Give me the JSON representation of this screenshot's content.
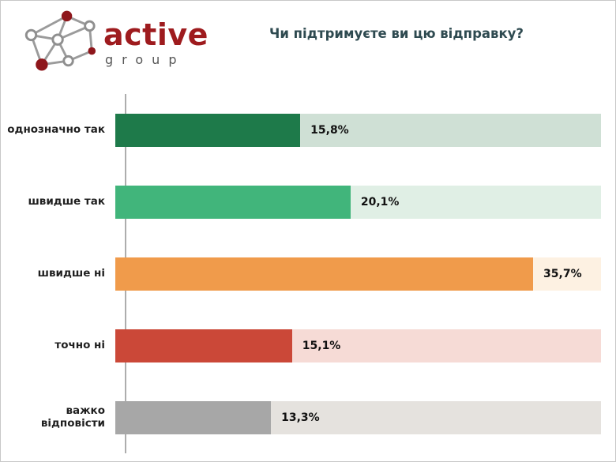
{
  "header": {
    "logo": {
      "brand": "active",
      "sub": "group",
      "icon": "network-graph-icon"
    },
    "title": "Чи підтримуєте ви цю відправку?"
  },
  "colors": {
    "brand_red": "#9e1b1e",
    "logo_sub_gray": "#555555",
    "title": "#2e4a50",
    "axis": "#adadad"
  },
  "chart_data": {
    "type": "bar",
    "orientation": "horizontal",
    "title": "Чи підтримуєте ви цю відправку?",
    "categories": [
      "однозначно так",
      "швидше так",
      "швидше ні",
      "точно ні",
      "важко відповісти"
    ],
    "values": [
      15.8,
      20.1,
      35.7,
      15.1,
      13.3
    ],
    "value_labels": [
      "15,8%",
      "20,1%",
      "35,7%",
      "15,1%",
      "13,3%"
    ],
    "xlim": [
      0,
      41.5
    ],
    "bar_colors": [
      "#1e7a4a",
      "#41b57b",
      "#f09b4b",
      "#cb4838",
      "#a7a7a7"
    ],
    "track_colors": [
      "#cfe0d5",
      "#e0efe5",
      "#fdf1e2",
      "#f6dbd6",
      "#e5e2de"
    ],
    "grid": false,
    "legend": false
  }
}
